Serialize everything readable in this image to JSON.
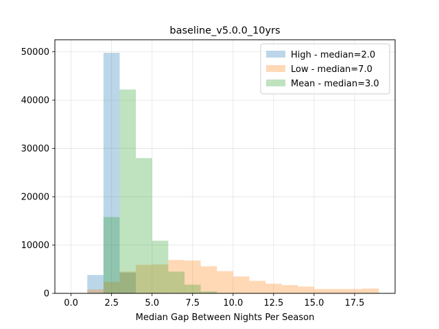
{
  "chart_data": {
    "type": "bar",
    "title": "baseline_v5.0.0_10yrs",
    "xlabel": "Median Gap Between Nights Per Season",
    "ylabel": "",
    "xlim": [
      -1,
      20
    ],
    "ylim": [
      0,
      52500
    ],
    "xticks": [
      0.0,
      2.5,
      5.0,
      7.5,
      10.0,
      12.5,
      15.0,
      17.5
    ],
    "xtick_labels": [
      "0.0",
      "2.5",
      "5.0",
      "7.5",
      "10.0",
      "12.5",
      "15.0",
      "17.5"
    ],
    "yticks": [
      0,
      10000,
      20000,
      30000,
      40000,
      50000
    ],
    "ytick_labels": [
      "0",
      "10000",
      "20000",
      "30000",
      "40000",
      "50000"
    ],
    "grid": true,
    "legend_position": "top-right",
    "series": [
      {
        "name": "High - median=2.0",
        "color": "#1f77b4",
        "alpha": 0.3,
        "bins": [
          [
            1,
            2,
            3800
          ],
          [
            2,
            3,
            49800
          ],
          [
            3,
            4,
            4300
          ]
        ]
      },
      {
        "name": "Low - median=7.0",
        "color": "#ff7f0e",
        "alpha": 0.3,
        "bins": [
          [
            1,
            2,
            800
          ],
          [
            2,
            3,
            2400
          ],
          [
            3,
            4,
            4500
          ],
          [
            4,
            5,
            5900
          ],
          [
            5,
            6,
            6000
          ],
          [
            6,
            7,
            6900
          ],
          [
            7,
            8,
            6800
          ],
          [
            8,
            9,
            5600
          ],
          [
            9,
            10,
            4600
          ],
          [
            10,
            11,
            3500
          ],
          [
            11,
            12,
            2600
          ],
          [
            12,
            13,
            2000
          ],
          [
            13,
            14,
            1700
          ],
          [
            14,
            15,
            1400
          ],
          [
            15,
            16,
            900
          ],
          [
            16,
            17,
            900
          ],
          [
            17,
            18,
            900
          ],
          [
            18,
            19,
            1000
          ]
        ]
      },
      {
        "name": "Mean - median=3.0",
        "color": "#2ca02c",
        "alpha": 0.3,
        "bins": [
          [
            2,
            3,
            15800
          ],
          [
            3,
            4,
            42200
          ],
          [
            4,
            5,
            28000
          ],
          [
            5,
            6,
            10900
          ],
          [
            6,
            7,
            4500
          ],
          [
            7,
            8,
            1800
          ],
          [
            8,
            9,
            400
          ]
        ]
      }
    ]
  }
}
